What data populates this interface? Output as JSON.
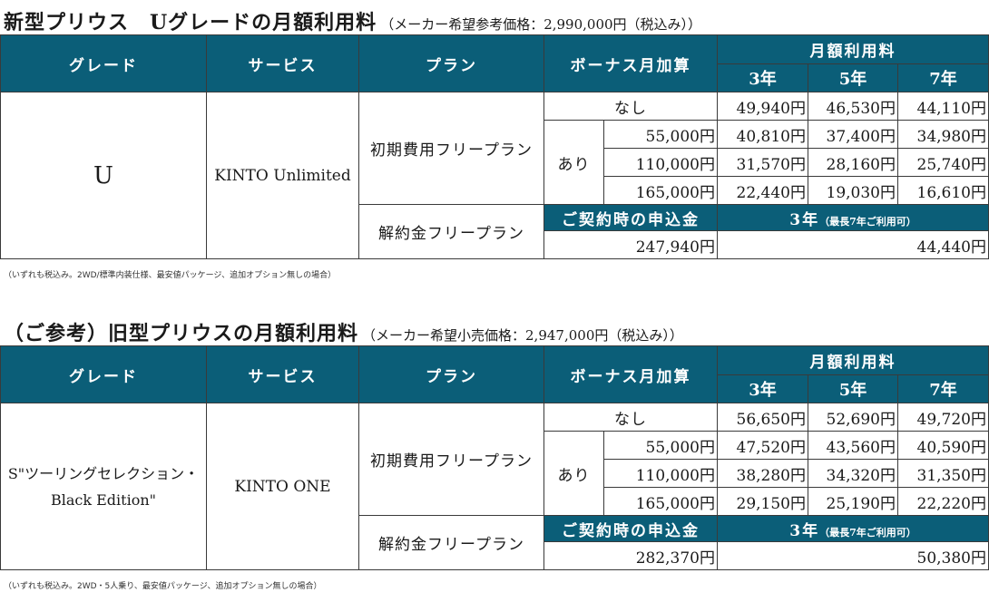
{
  "sections": [
    {
      "title": "新型プリウス　Uグレードの月額利用料",
      "subtitle": "（メーカー希望参考価格：2,990,000円（税込み））",
      "headers": {
        "grade": "グレード",
        "service": "サービス",
        "plan": "プラン",
        "bonus": "ボーナス月加算",
        "monthly": "月額利用料",
        "y3": "3年",
        "y5": "5年",
        "y7": "7年"
      },
      "grade": "U",
      "service": "KINTO Unlimited",
      "plan_free": "初期費用フリープラン",
      "plan_cancel": "解約金フリープラン",
      "none_label": "なし",
      "ari_label": "あり",
      "none_row": [
        "49,940円",
        "46,530円",
        "44,110円"
      ],
      "bonus_rows": [
        {
          "bonus": "55,000円",
          "values": [
            "40,810円",
            "37,400円",
            "34,980円"
          ]
        },
        {
          "bonus": "110,000円",
          "values": [
            "31,570円",
            "28,160円",
            "25,740円"
          ]
        },
        {
          "bonus": "165,000円",
          "values": [
            "22,440円",
            "19,030円",
            "16,610円"
          ]
        }
      ],
      "deposit_label": "ご契約時の申込金",
      "term_label": "3年",
      "term_note": "（最長7年ご利用可）",
      "deposit_value": "247,940円",
      "term_value": "44,440円",
      "note": "（いずれも税込み。2WD/標準内装仕様、最安値パッケージ、追加オプション無しの場合）"
    },
    {
      "title": "（ご参考）旧型プリウスの月額利用料",
      "subtitle": "（メーカー希望小売価格：2,947,000円（税込み））",
      "headers": {
        "grade": "グレード",
        "service": "サービス",
        "plan": "プラン",
        "bonus": "ボーナス月加算",
        "monthly": "月額利用料",
        "y3": "3年",
        "y5": "5年",
        "y7": "7年"
      },
      "grade_line1": "S\"ツーリングセレクション・",
      "grade_line2": "Black Edition\"",
      "service": "KINTO ONE",
      "plan_free": "初期費用フリープラン",
      "plan_cancel": "解約金フリープラン",
      "none_label": "なし",
      "ari_label": "あり",
      "none_row": [
        "56,650円",
        "52,690円",
        "49,720円"
      ],
      "bonus_rows": [
        {
          "bonus": "55,000円",
          "values": [
            "47,520円",
            "43,560円",
            "40,590円"
          ]
        },
        {
          "bonus": "110,000円",
          "values": [
            "38,280円",
            "34,320円",
            "31,350円"
          ]
        },
        {
          "bonus": "165,000円",
          "values": [
            "29,150円",
            "25,190円",
            "22,220円"
          ]
        }
      ],
      "deposit_label": "ご契約時の申込金",
      "term_label": "3年",
      "term_note": "（最長7年ご利用可）",
      "deposit_value": "282,370円",
      "term_value": "50,380円",
      "note": "（いずれも税込み。2WD・5人乗り、最安値パッケージ、追加オプション無しの場合）"
    }
  ]
}
